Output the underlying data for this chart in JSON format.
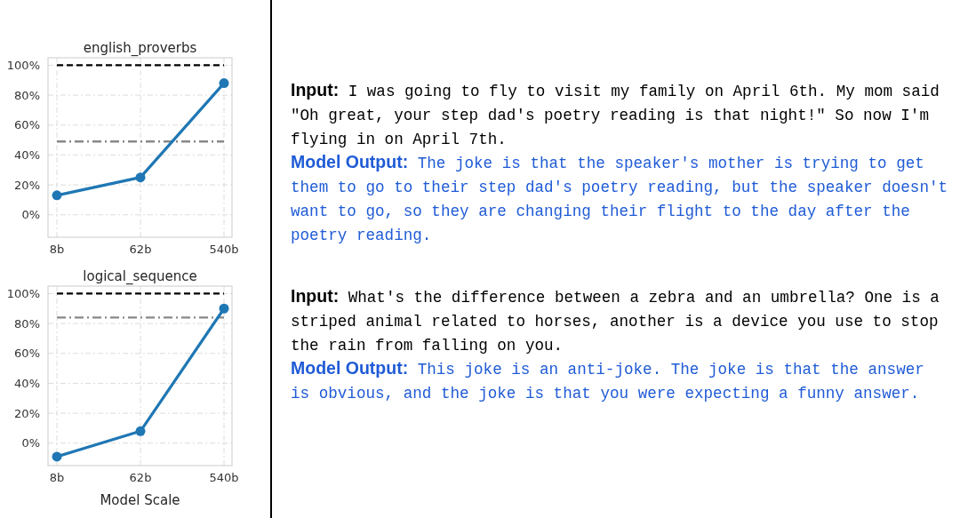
{
  "chart_data": [
    {
      "type": "line",
      "title": "english_proverbs",
      "categories": [
        "8b",
        "62b",
        "540b"
      ],
      "values": [
        13,
        25,
        88
      ],
      "color": "#1f77b4",
      "ylim": [
        -15,
        105
      ],
      "yticks": [
        {
          "value": 0,
          "label": "0%"
        },
        {
          "value": 20,
          "label": "20%"
        },
        {
          "value": 40,
          "label": "40%"
        },
        {
          "value": 60,
          "label": "60%"
        },
        {
          "value": 80,
          "label": "80%"
        },
        {
          "value": 100,
          "label": "100%"
        }
      ],
      "grid": true,
      "marker": "circle",
      "line_style": "solid",
      "ref_lines": [
        {
          "axis": "y",
          "value": 100,
          "color": "#000000",
          "line_style": "dashed"
        },
        {
          "axis": "y",
          "value": 49,
          "color": "#888888",
          "line_style": "dashdot"
        }
      ]
    },
    {
      "type": "line",
      "title": "logical_sequence",
      "xlabel": "Model Scale",
      "categories": [
        "8b",
        "62b",
        "540b"
      ],
      "values": [
        -9,
        8,
        90
      ],
      "color": "#1f77b4",
      "ylim": [
        -15,
        105
      ],
      "yticks": [
        {
          "value": 0,
          "label": "0%"
        },
        {
          "value": 20,
          "label": "20%"
        },
        {
          "value": 40,
          "label": "40%"
        },
        {
          "value": 60,
          "label": "60%"
        },
        {
          "value": 80,
          "label": "80%"
        },
        {
          "value": 100,
          "label": "100%"
        }
      ],
      "grid": true,
      "marker": "circle",
      "line_style": "solid",
      "ref_lines": [
        {
          "axis": "y",
          "value": 100,
          "color": "#000000",
          "line_style": "dashed"
        },
        {
          "axis": "y",
          "value": 84,
          "color": "#888888",
          "line_style": "dashdot"
        }
      ]
    },
    {
      "type": "other",
      "annotations": [
        "Input:",
        "I was going to fly to visit my family on April 6th. My mom said \"Oh great, your step dad's poetry reading is that night!\" So now I'm flying in on April 7th.",
        "Model Output:",
        "The joke is that the speaker's mother is trying to get them to go to their step dad's poetry reading, but the speaker doesn't want to go, so they are changing their flight to the day after the poetry reading.",
        "Input:",
        "What's the difference between a zebra and an umbrella? One is a striped animal related to horses, another is a device you use to stop the rain from falling on you.",
        "Model Output:",
        "This joke is an anti-joke. The joke is that the answer is obvious, and the joke is that you were expecting a funny answer."
      ]
    }
  ]
}
